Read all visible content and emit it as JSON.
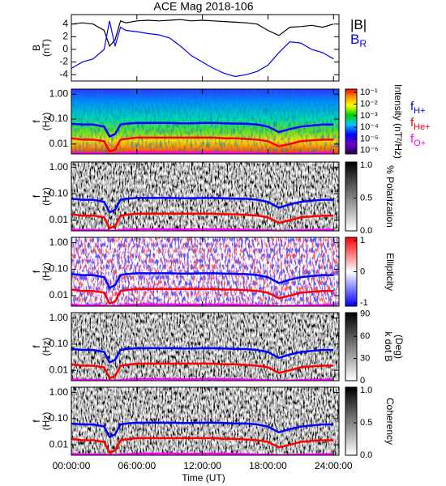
{
  "time_axis": {
    "x": [
      0,
      1,
      2,
      3,
      3.5,
      4,
      4.5,
      5,
      6,
      7,
      8,
      9,
      10,
      11,
      12,
      13,
      14,
      15,
      16,
      17,
      18,
      19,
      20,
      21,
      22,
      23,
      24
    ],
    "xlim": [
      0,
      24.5
    ],
    "xticks": [
      {
        "value": 0,
        "label": "00:00:00"
      },
      {
        "value": 6,
        "label": "06:00:00"
      },
      {
        "value": 12,
        "label": "12:00:00"
      },
      {
        "value": 18,
        "label": "18:00:00"
      },
      {
        "value": 24,
        "label": "24:00:00"
      }
    ],
    "xlabel": "Time (UT)"
  },
  "frequency_lines": {
    "series": [
      {
        "name": "f",
        "subscript": "H+",
        "color": "#0000ff",
        "values": [
          0.065,
          0.06,
          0.06,
          0.05,
          0.02,
          0.025,
          0.06,
          0.065,
          0.07,
          0.07,
          0.07,
          0.07,
          0.068,
          0.068,
          0.07,
          0.07,
          0.068,
          0.066,
          0.065,
          0.06,
          0.05,
          0.03,
          0.04,
          0.05,
          0.055,
          0.06,
          0.06
        ]
      },
      {
        "name": "f",
        "subscript": "He+",
        "color": "#ff0000",
        "values": [
          0.017,
          0.015,
          0.015,
          0.013,
          0.005,
          0.006,
          0.015,
          0.016,
          0.018,
          0.018,
          0.018,
          0.018,
          0.018,
          0.018,
          0.018,
          0.018,
          0.017,
          0.017,
          0.016,
          0.015,
          0.013,
          0.008,
          0.01,
          0.013,
          0.014,
          0.015,
          0.015
        ]
      },
      {
        "name": "f",
        "subscript": "O+",
        "color": "#ff00ff",
        "values": [
          0.0045,
          0.0043,
          0.0043,
          0.0042,
          0.004,
          0.004,
          0.0043,
          0.0044,
          0.0046,
          0.0046,
          0.0046,
          0.0046,
          0.0045,
          0.0045,
          0.0046,
          0.0046,
          0.0045,
          0.0045,
          0.0044,
          0.0043,
          0.0042,
          0.004,
          0.0041,
          0.0042,
          0.0043,
          0.0044,
          0.0044
        ]
      }
    ]
  },
  "chart_data": [
    {
      "type": "line",
      "title": "ACE Mag 2018-106",
      "ylabel": [
        "B",
        "(nT)"
      ],
      "ylim": [
        -5,
        5.5
      ],
      "yticks": [
        -4,
        -2,
        0,
        2,
        4
      ],
      "series": [
        {
          "name": "|B|",
          "color": "#000000",
          "values": [
            4,
            4.2,
            4,
            3,
            0.5,
            1.5,
            4.5,
            4.2,
            4.5,
            4.6,
            4.5,
            4.6,
            4.7,
            4.5,
            4.6,
            4.5,
            4.4,
            4.3,
            4.2,
            4,
            3,
            2.2,
            3.5,
            3.6,
            3.8,
            3.5,
            4
          ]
        },
        {
          "name": "B",
          "subscript": "R",
          "color": "#0000ff",
          "values": [
            -3,
            -2,
            -1.5,
            0,
            4.5,
            0.5,
            3.5,
            3,
            2.8,
            2.5,
            2.3,
            1.8,
            0.5,
            -1,
            -2,
            -3,
            -3.8,
            -4.3,
            -4,
            -3.5,
            -2.5,
            -0.5,
            1.2,
            1,
            0,
            -0.5,
            -1.5
          ]
        }
      ]
    },
    {
      "type": "spectrogram",
      "ylabel": [
        "f",
        "(Hz)"
      ],
      "log_y": true,
      "ylim": [
        0.004,
        1.6
      ],
      "yticks": [
        {
          "value": 1,
          "label": "1.00"
        },
        {
          "value": 0.1,
          "label": "0.10"
        },
        0.01
      ],
      "colorbar": {
        "label": "Intensity (nT²/Hz)",
        "colormap": "rainbow",
        "log": true,
        "clim": [
          5e-07,
          0.2
        ],
        "ticks": [
          {
            "value": 0.1,
            "label": "10⁻¹"
          },
          {
            "value": 0.01,
            "label": "10⁻²"
          },
          {
            "value": 0.001,
            "label": "10⁻³"
          },
          {
            "value": 0.0001,
            "label": "10⁻⁴"
          },
          {
            "value": 1e-05,
            "label": "10⁻⁵"
          },
          {
            "value": 1e-06,
            "label": "10⁻⁶"
          }
        ]
      },
      "legend": true
    },
    {
      "type": "spectrogram",
      "ylabel": [
        "f",
        "(Hz)"
      ],
      "log_y": true,
      "ylim": [
        0.004,
        1.6
      ],
      "yticks": [
        {
          "value": 1,
          "label": "1.00"
        },
        {
          "value": 0.1,
          "label": "0.10"
        },
        0.01
      ],
      "colorbar": {
        "label": "% Polarization",
        "colormap": "gray",
        "log": false,
        "clim": [
          0,
          1.05
        ],
        "ticks": [
          {
            "value": 0,
            "label": "0.0"
          },
          0.5,
          {
            "value": 1,
            "label": "1.0"
          }
        ]
      }
    },
    {
      "type": "spectrogram",
      "ylabel": [
        "f",
        "(Hz)"
      ],
      "log_y": true,
      "ylim": [
        0.004,
        1.6
      ],
      "yticks": [
        {
          "value": 1,
          "label": "1.00"
        },
        {
          "value": 0.1,
          "label": "0.10"
        },
        0.01
      ],
      "colorbar": {
        "label": "Ellipticity",
        "colormap": "bwr",
        "log": false,
        "clim": [
          -1.1,
          1.1
        ],
        "ticks": [
          -1,
          0,
          1
        ]
      }
    },
    {
      "type": "spectrogram",
      "ylabel": [
        "f",
        "(Hz)"
      ],
      "log_y": true,
      "ylim": [
        0.004,
        1.6
      ],
      "yticks": [
        {
          "value": 1,
          "label": "1.00"
        },
        {
          "value": 0.1,
          "label": "0.10"
        },
        0.01
      ],
      "colorbar": {
        "label": "k dot B",
        "unit": "(Deg)",
        "colormap": "gray",
        "log": false,
        "clim": [
          0,
          92
        ],
        "ticks": [
          0,
          30,
          60,
          90
        ]
      }
    },
    {
      "type": "spectrogram",
      "ylabel": [
        "f",
        "(Hz)"
      ],
      "log_y": true,
      "ylim": [
        0.004,
        1.6
      ],
      "yticks": [
        {
          "value": 1,
          "label": "1.00"
        },
        {
          "value": 0.1,
          "label": "0.10"
        },
        0.01
      ],
      "colorbar": {
        "label": "Coherency",
        "colormap": "gray",
        "log": false,
        "clim": [
          0,
          1.05
        ],
        "ticks": [
          {
            "value": 0,
            "label": "0.0"
          },
          0.5,
          {
            "value": 1,
            "label": "1.0"
          }
        ]
      }
    }
  ]
}
